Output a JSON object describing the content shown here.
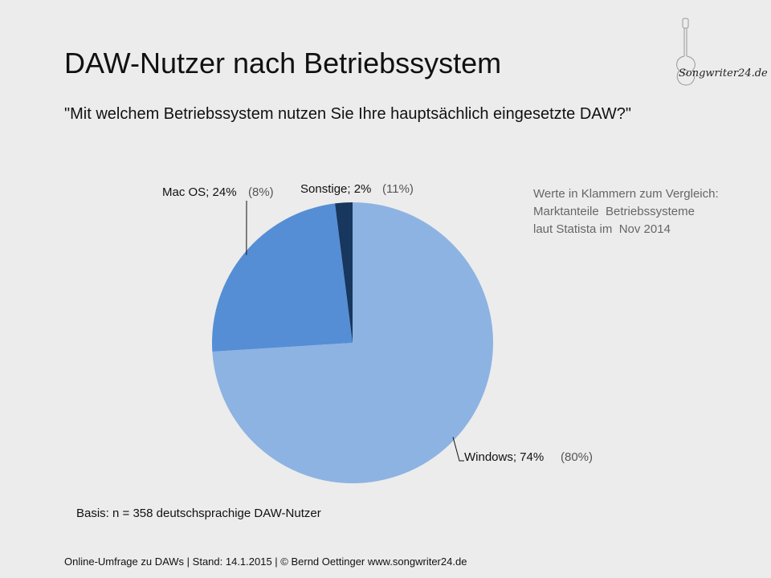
{
  "slide": {
    "title": "DAW-Nutzer nach Betriebssystem",
    "subtitle": "\"Mit welchem Betriebssystem nutzen Sie Ihre hauptsächlich eingesetzte DAW?\"",
    "note_lines": [
      "Werte in Klammern zum Vergleich:",
      "Marktanteile  Betriebssysteme",
      "laut Statista im  Nov 2014"
    ],
    "basis": "Basis: n = 358 deutschsprachige DAW-Nutzer",
    "footer": "Online-Umfrage zu DAWs |  Stand: 14.1.2015 | © Bernd Oettinger www.songwriter24.de",
    "logo_text": "Songwriter24.de"
  },
  "chart_data": {
    "type": "pie",
    "slices": [
      {
        "label": "Windows; 74%",
        "category": "Windows",
        "value": 74,
        "comparison": "(80%)",
        "color": "#8db3e2"
      },
      {
        "label": "Mac OS; 24%",
        "category": "Mac OS",
        "value": 24,
        "comparison": "(8%)",
        "color": "#558ed5"
      },
      {
        "label": "Sonstige; 2%",
        "category": "Sonstige",
        "value": 2,
        "comparison": "(11%)",
        "color": "#17375e"
      }
    ],
    "start_angle_deg": 0,
    "direction": "clockwise"
  }
}
